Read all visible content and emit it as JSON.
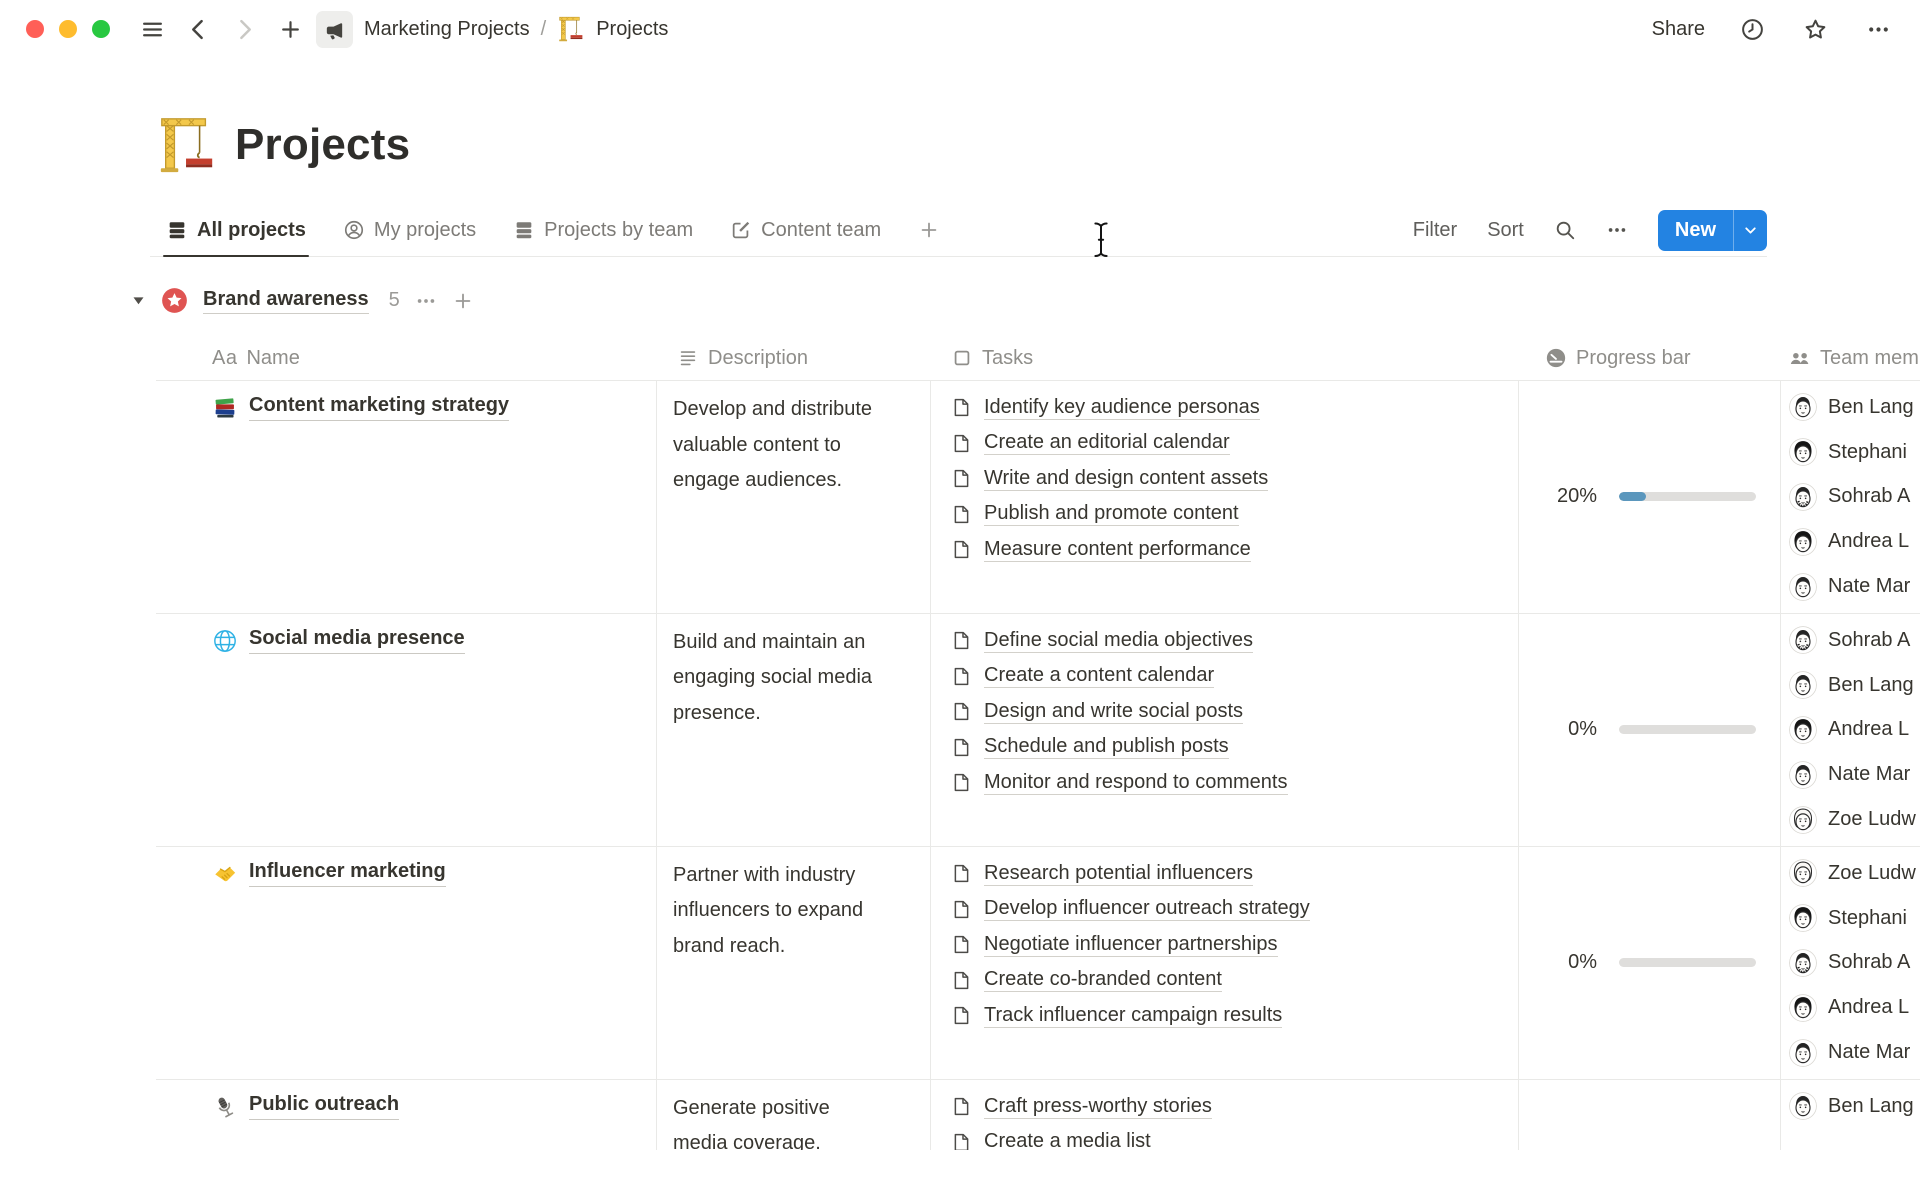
{
  "window": {
    "traffic_lights": [
      {
        "name": "close",
        "color": "#ff5f57"
      },
      {
        "name": "minimize",
        "color": "#febc2e"
      },
      {
        "name": "expand",
        "color": "#28c840"
      }
    ],
    "breadcrumb": {
      "items": [
        {
          "icon": "megaphone",
          "label": "Marketing Projects"
        },
        {
          "icon": "crane",
          "label": "Projects"
        }
      ],
      "separator": "/"
    },
    "actions": {
      "share_label": "Share"
    }
  },
  "page": {
    "icon": "crane",
    "title": "Projects"
  },
  "views": {
    "tabs": [
      {
        "icon": "table",
        "label": "All projects",
        "active": true
      },
      {
        "icon": "person",
        "label": "My projects",
        "active": false
      },
      {
        "icon": "table",
        "label": "Projects by team",
        "active": false
      },
      {
        "icon": "compose",
        "label": "Content team",
        "active": false
      }
    ]
  },
  "toolbar": {
    "filter_label": "Filter",
    "sort_label": "Sort",
    "new_button": {
      "label": "New",
      "color": "#2383e2"
    }
  },
  "group": {
    "badge_icon": "star-badge",
    "badge_color": "#df5452",
    "name": "Brand awareness",
    "count": "5"
  },
  "table": {
    "columns": [
      {
        "icon": "aa",
        "label": "Name"
      },
      {
        "icon": "text-lines",
        "label": "Description"
      },
      {
        "icon": "square",
        "label": "Tasks"
      },
      {
        "icon": "gauge",
        "label": "Progress bar"
      },
      {
        "icon": "people",
        "label": "Team members"
      }
    ],
    "rows": [
      {
        "icon": "books",
        "name": "Content marketing strategy",
        "description": "Develop and distribute valuable content to engage audiences.",
        "tasks": [
          "Identify key audience personas",
          "Create an editorial calendar",
          "Write and design content assets",
          "Publish and promote content",
          "Measure content performance"
        ],
        "progress": 20,
        "progress_label": "20%",
        "team": [
          {
            "avatar": "ben",
            "name": "Ben Lang"
          },
          {
            "avatar": "stephanie",
            "name": "Stephani"
          },
          {
            "avatar": "sohrab",
            "name": "Sohrab A"
          },
          {
            "avatar": "andrea",
            "name": "Andrea L"
          },
          {
            "avatar": "nate",
            "name": "Nate Mar"
          }
        ]
      },
      {
        "icon": "globe",
        "name": "Social media presence",
        "description": "Build and maintain an engaging social media presence.",
        "tasks": [
          "Define social media objectives",
          "Create a content calendar",
          "Design and write social posts",
          "Schedule and publish posts",
          "Monitor and respond to comments"
        ],
        "progress": 0,
        "progress_label": "0%",
        "team": [
          {
            "avatar": "sohrab",
            "name": "Sohrab A"
          },
          {
            "avatar": "ben",
            "name": "Ben Lang"
          },
          {
            "avatar": "andrea",
            "name": "Andrea L"
          },
          {
            "avatar": "nate",
            "name": "Nate Mar"
          },
          {
            "avatar": "zoe",
            "name": "Zoe Ludw"
          }
        ]
      },
      {
        "icon": "handshake",
        "name": "Influencer marketing",
        "description": "Partner with industry influencers to expand brand reach.",
        "tasks": [
          "Research potential influencers",
          "Develop influencer outreach strategy",
          "Negotiate influencer partnerships",
          "Create co-branded content",
          "Track influencer campaign results"
        ],
        "progress": 0,
        "progress_label": "0%",
        "team": [
          {
            "avatar": "zoe",
            "name": "Zoe Ludw"
          },
          {
            "avatar": "stephanie",
            "name": "Stephani"
          },
          {
            "avatar": "sohrab",
            "name": "Sohrab A"
          },
          {
            "avatar": "andrea",
            "name": "Andrea L"
          },
          {
            "avatar": "nate",
            "name": "Nate Mar"
          }
        ]
      },
      {
        "icon": "microphone",
        "name": "Public outreach",
        "description": "Generate positive media coverage.",
        "tasks": [
          "Craft press-worthy stories",
          "Create a media list"
        ],
        "progress": null,
        "progress_label": null,
        "team": [
          {
            "avatar": "ben",
            "name": "Ben Lang"
          }
        ]
      }
    ]
  },
  "progress_colors": {
    "fill": "#5b97bd",
    "track": "#dfdedc"
  },
  "cursor": {
    "type": "text-ibeam"
  }
}
